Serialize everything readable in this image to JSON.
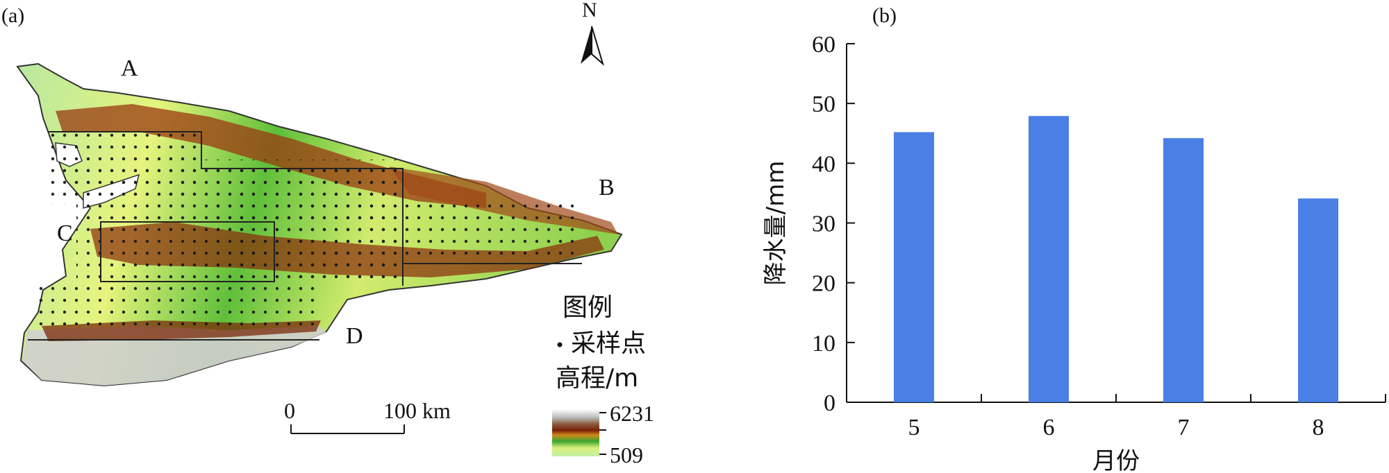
{
  "map_panel": {
    "label": "(a)",
    "north_label": "N",
    "region_labels": [
      "A",
      "B",
      "C",
      "D"
    ],
    "legend": {
      "title": "图例",
      "sample_points": "采样点",
      "elevation_title": "高程/m",
      "elevation_max": "6231",
      "elevation_min": "509"
    },
    "scale_bar": {
      "start": "0",
      "end": "100 km"
    }
  },
  "chart_panel": {
    "label": "(b)",
    "bar_color": "#4a7fe6",
    "chart_data": {
      "type": "bar",
      "categories": [
        "5",
        "6",
        "7",
        "8"
      ],
      "values": [
        45.2,
        47.9,
        44.2,
        34.1
      ],
      "xlabel": "月份",
      "ylabel": "降水量/mm",
      "ylim": [
        0,
        60
      ],
      "yticks": [
        "0",
        "10",
        "20",
        "30",
        "40",
        "50",
        "60"
      ],
      "grid": false
    }
  }
}
